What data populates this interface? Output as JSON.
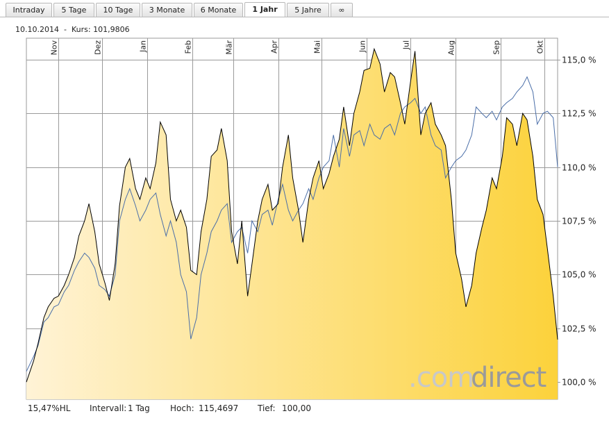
{
  "tabs": [
    {
      "label": "Intraday",
      "active": false
    },
    {
      "label": "5 Tage",
      "active": false
    },
    {
      "label": "10 Tage",
      "active": false
    },
    {
      "label": "3 Monate",
      "active": false
    },
    {
      "label": "6 Monate",
      "active": false
    },
    {
      "label": "1 Jahr",
      "active": true
    },
    {
      "label": "5 Jahre",
      "active": false
    },
    {
      "label": "∞",
      "active": false
    }
  ],
  "info": {
    "date": "10.10.2014",
    "separator": "-",
    "price_label": "Kurs:",
    "price_value": "101,9806"
  },
  "footer": {
    "hl": "15,47%HL",
    "interval_label": "Intervall:",
    "interval_value": "1 Tag",
    "high_label": "Hoch:",
    "high_value": "115,4697",
    "low_label": "Tief:",
    "low_value": "100,00"
  },
  "watermark": {
    "part1": ".com",
    "part2": "direct"
  },
  "colors": {
    "area_light": "#fff3d6",
    "area_dark": "#fcd23b",
    "main_line": "#000000",
    "compare_line": "#4a6ea8",
    "grid": "#9a9a9a",
    "watermark_gray": "#c8c8c8",
    "watermark_dark": "#9a9a9a"
  },
  "chart_data": {
    "type": "area",
    "x_range": [
      "2013-10-10",
      "2014-10-10"
    ],
    "ylim": [
      99.2,
      116.0
    ],
    "y_ticks": [
      100.0,
      102.5,
      105.0,
      107.5,
      110.0,
      112.5,
      115.0
    ],
    "y_tick_labels": [
      "100,0 %",
      "102,5 %",
      "105,0 %",
      "107,5 %",
      "110,0 %",
      "112,5 %",
      "115,0 %"
    ],
    "month_ticks": [
      {
        "label": "Nov",
        "date": "2013-11-01"
      },
      {
        "label": "Dez",
        "date": "2013-12-01"
      },
      {
        "label": "Jan",
        "date": "2014-01-01"
      },
      {
        "label": "Feb",
        "date": "2014-02-01"
      },
      {
        "label": "Mär",
        "date": "2014-03-01"
      },
      {
        "label": "Apr",
        "date": "2014-04-01"
      },
      {
        "label": "Mai",
        "date": "2014-05-01"
      },
      {
        "label": "Jun",
        "date": "2014-06-01"
      },
      {
        "label": "Jul",
        "date": "2014-07-01"
      },
      {
        "label": "Aug",
        "date": "2014-08-01"
      },
      {
        "label": "Sep",
        "date": "2014-09-01"
      },
      {
        "label": "Okt",
        "date": "2014-10-01"
      }
    ],
    "grid": true,
    "series": [
      {
        "role": "main",
        "x": [
          "2013-10-10",
          "2013-10-15",
          "2013-10-18",
          "2013-10-22",
          "2013-10-25",
          "2013-10-29",
          "2013-11-01",
          "2013-11-05",
          "2013-11-08",
          "2013-11-12",
          "2013-11-15",
          "2013-11-19",
          "2013-11-22",
          "2013-11-26",
          "2013-11-29",
          "2013-12-03",
          "2013-12-06",
          "2013-12-10",
          "2013-12-13",
          "2013-12-17",
          "2013-12-20",
          "2013-12-24",
          "2013-12-27",
          "2013-12-31",
          "2014-01-03",
          "2014-01-07",
          "2014-01-10",
          "2014-01-14",
          "2014-01-17",
          "2014-01-21",
          "2014-01-24",
          "2014-01-28",
          "2014-01-31",
          "2014-02-04",
          "2014-02-07",
          "2014-02-11",
          "2014-02-14",
          "2014-02-18",
          "2014-02-21",
          "2014-02-25",
          "2014-02-28",
          "2014-03-04",
          "2014-03-07",
          "2014-03-11",
          "2014-03-14",
          "2014-03-18",
          "2014-03-21",
          "2014-03-25",
          "2014-03-28",
          "2014-04-01",
          "2014-04-04",
          "2014-04-08",
          "2014-04-11",
          "2014-04-15",
          "2014-04-18",
          "2014-04-22",
          "2014-04-25",
          "2014-04-29",
          "2014-05-02",
          "2014-05-06",
          "2014-05-09",
          "2014-05-13",
          "2014-05-16",
          "2014-05-20",
          "2014-05-23",
          "2014-05-27",
          "2014-05-30",
          "2014-06-03",
          "2014-06-06",
          "2014-06-10",
          "2014-06-13",
          "2014-06-17",
          "2014-06-20",
          "2014-06-24",
          "2014-06-27",
          "2014-07-01",
          "2014-07-04",
          "2014-07-08",
          "2014-07-11",
          "2014-07-15",
          "2014-07-18",
          "2014-07-22",
          "2014-07-25",
          "2014-07-29",
          "2014-08-01",
          "2014-08-05",
          "2014-08-08",
          "2014-08-12",
          "2014-08-15",
          "2014-08-19",
          "2014-08-22",
          "2014-08-26",
          "2014-08-29",
          "2014-09-02",
          "2014-09-05",
          "2014-09-09",
          "2014-09-12",
          "2014-09-16",
          "2014-09-19",
          "2014-09-23",
          "2014-09-26",
          "2014-09-30",
          "2014-10-03",
          "2014-10-07",
          "2014-10-10"
        ],
        "values": [
          100.0,
          101.0,
          101.8,
          103.0,
          103.5,
          103.9,
          104.0,
          104.5,
          105.0,
          105.8,
          106.8,
          107.5,
          108.3,
          107.0,
          105.5,
          104.6,
          103.8,
          105.5,
          108.2,
          110.0,
          110.4,
          109.0,
          108.5,
          109.5,
          109.0,
          110.2,
          112.1,
          111.5,
          108.5,
          107.5,
          108.0,
          107.2,
          105.2,
          105.0,
          107.0,
          108.5,
          110.5,
          110.8,
          111.8,
          110.3,
          107.0,
          105.5,
          107.5,
          104.0,
          105.5,
          107.5,
          108.5,
          109.2,
          108.0,
          108.3,
          110.0,
          111.5,
          109.5,
          108.0,
          106.5,
          108.5,
          109.5,
          110.3,
          109.0,
          109.7,
          110.5,
          111.3,
          112.8,
          111.0,
          112.5,
          113.5,
          114.5,
          114.6,
          115.5,
          114.8,
          113.5,
          114.4,
          114.2,
          113.0,
          112.0,
          114.0,
          115.4,
          111.5,
          112.5,
          113.0,
          112.0,
          111.5,
          111.0,
          108.5,
          106.0,
          104.8,
          103.5,
          104.5,
          106.0,
          107.2,
          108.0,
          109.5,
          109.0,
          110.5,
          112.3,
          112.0,
          111.0,
          112.5,
          112.2,
          110.5,
          108.5,
          107.8,
          106.2,
          104.0,
          101.98
        ]
      },
      {
        "role": "compare",
        "x": [
          "2013-10-10",
          "2013-10-15",
          "2013-10-18",
          "2013-10-22",
          "2013-10-25",
          "2013-10-29",
          "2013-11-01",
          "2013-11-05",
          "2013-11-08",
          "2013-11-12",
          "2013-11-15",
          "2013-11-19",
          "2013-11-22",
          "2013-11-26",
          "2013-11-29",
          "2013-12-03",
          "2013-12-06",
          "2013-12-10",
          "2013-12-13",
          "2013-12-17",
          "2013-12-20",
          "2013-12-24",
          "2013-12-27",
          "2013-12-31",
          "2014-01-03",
          "2014-01-07",
          "2014-01-10",
          "2014-01-14",
          "2014-01-17",
          "2014-01-21",
          "2014-01-24",
          "2014-01-28",
          "2014-01-31",
          "2014-02-04",
          "2014-02-07",
          "2014-02-11",
          "2014-02-14",
          "2014-02-18",
          "2014-02-21",
          "2014-02-25",
          "2014-02-28",
          "2014-03-04",
          "2014-03-07",
          "2014-03-11",
          "2014-03-14",
          "2014-03-18",
          "2014-03-21",
          "2014-03-25",
          "2014-03-28",
          "2014-04-01",
          "2014-04-04",
          "2014-04-08",
          "2014-04-11",
          "2014-04-15",
          "2014-04-18",
          "2014-04-22",
          "2014-04-25",
          "2014-04-29",
          "2014-05-02",
          "2014-05-06",
          "2014-05-09",
          "2014-05-13",
          "2014-05-16",
          "2014-05-20",
          "2014-05-23",
          "2014-05-27",
          "2014-05-30",
          "2014-06-03",
          "2014-06-06",
          "2014-06-10",
          "2014-06-13",
          "2014-06-17",
          "2014-06-20",
          "2014-06-24",
          "2014-06-27",
          "2014-07-01",
          "2014-07-04",
          "2014-07-08",
          "2014-07-11",
          "2014-07-15",
          "2014-07-18",
          "2014-07-22",
          "2014-07-25",
          "2014-07-29",
          "2014-08-01",
          "2014-08-05",
          "2014-08-08",
          "2014-08-12",
          "2014-08-15",
          "2014-08-19",
          "2014-08-22",
          "2014-08-26",
          "2014-08-29",
          "2014-09-02",
          "2014-09-05",
          "2014-09-09",
          "2014-09-12",
          "2014-09-16",
          "2014-09-19",
          "2014-09-23",
          "2014-09-26",
          "2014-09-30",
          "2014-10-03",
          "2014-10-07",
          "2014-10-10"
        ],
        "values": [
          100.5,
          101.2,
          101.7,
          102.8,
          103.0,
          103.5,
          103.6,
          104.2,
          104.5,
          105.2,
          105.6,
          106.0,
          105.8,
          105.3,
          104.5,
          104.3,
          104.0,
          105.0,
          107.5,
          108.5,
          109.0,
          108.2,
          107.5,
          108.0,
          108.5,
          108.8,
          107.8,
          106.8,
          107.5,
          106.5,
          105.0,
          104.2,
          102.0,
          103.0,
          105.0,
          106.0,
          107.0,
          107.5,
          108.0,
          108.3,
          106.5,
          107.0,
          107.2,
          106.0,
          107.5,
          107.0,
          107.8,
          108.0,
          107.3,
          108.5,
          109.2,
          108.0,
          107.5,
          108.0,
          108.3,
          109.0,
          108.5,
          109.5,
          110.0,
          110.3,
          111.5,
          110.0,
          111.8,
          110.5,
          111.5,
          111.7,
          111.0,
          112.0,
          111.5,
          111.3,
          111.8,
          112.0,
          111.5,
          112.5,
          112.8,
          113.0,
          113.2,
          112.5,
          112.8,
          111.5,
          111.0,
          110.8,
          109.5,
          110.0,
          110.3,
          110.5,
          110.8,
          111.5,
          112.8,
          112.5,
          112.3,
          112.6,
          112.2,
          112.8,
          113.0,
          113.2,
          113.5,
          113.8,
          114.2,
          113.5,
          112.0,
          112.5,
          112.6,
          112.3,
          110.0
        ]
      }
    ]
  }
}
